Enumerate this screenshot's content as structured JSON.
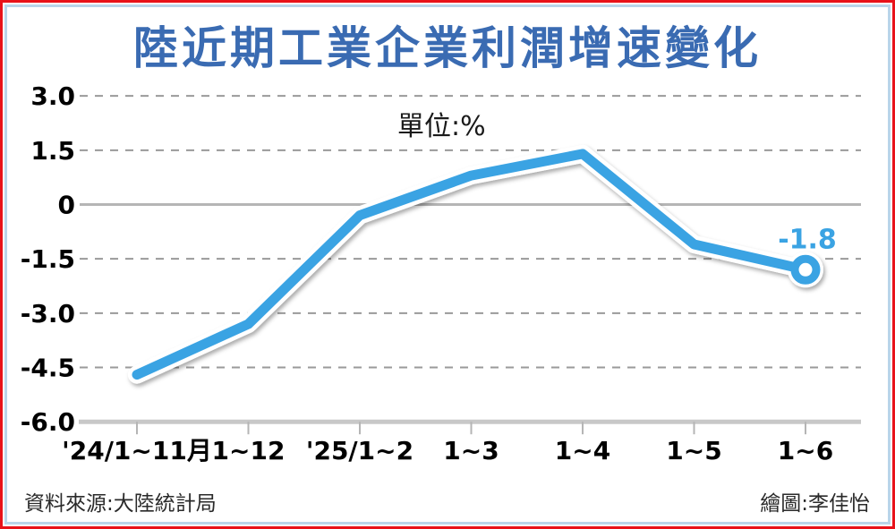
{
  "title": "陸近期工業企業利潤增速變化",
  "unit_label": "單位:%",
  "footer": {
    "source": "資料來源:大陸統計局",
    "credit": "繪圖:李佳怡"
  },
  "colors": {
    "title_blue": "#3a6bb2",
    "line_blue": "#3aa3e3",
    "outer_border_red": "#e8121a",
    "inner_border_blue": "#b9d5ea",
    "grid_dash_gray": "#9a9a9a",
    "zero_line_gray": "#b5b5b5",
    "axis_line_gray": "#c8c8c8"
  },
  "chart_data": {
    "type": "line",
    "title": "陸近期工業企業利潤增速變化",
    "unit": "%",
    "categories": [
      "'24/1~11月",
      "1~12",
      "'25/1~2",
      "1~3",
      "1~4",
      "1~5",
      "1~6"
    ],
    "values": [
      -4.7,
      -3.3,
      -0.3,
      0.8,
      1.4,
      -1.1,
      -1.8
    ],
    "last_point_label": "-1.8",
    "ylim": [
      -6.0,
      3.0
    ],
    "yticks": [
      3.0,
      1.5,
      0,
      -1.5,
      -3.0,
      -4.5,
      -6.0
    ],
    "ytick_labels": [
      "3.0",
      "1.5",
      "0",
      "-1.5",
      "-3.0",
      "-4.5",
      "-6.0"
    ],
    "grid": "horizontal dashed",
    "legend": "none",
    "line_color": "#3aa3e3",
    "marker": "open circle on last point"
  }
}
